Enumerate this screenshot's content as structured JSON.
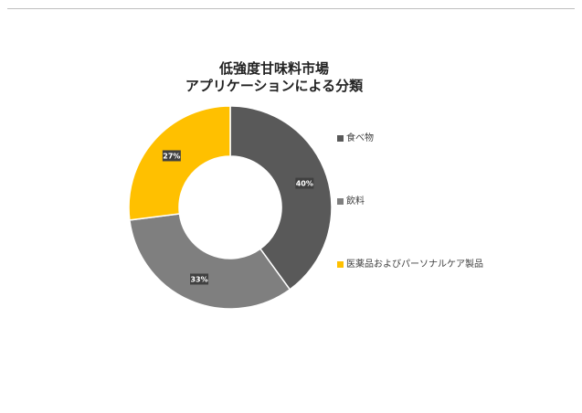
{
  "chart_data": {
    "type": "donut",
    "title": [
      "低強度甘味料市場",
      "アプリケーションによる分類"
    ],
    "categories": [
      "食べ物",
      "飲料",
      "医薬品およびパーソナルケア製品"
    ],
    "values": [
      40,
      33,
      27
    ],
    "data_labels": [
      "40%",
      "33%",
      "27%"
    ],
    "colors": [
      "#595959",
      "#7f7f7f",
      "#ffc000"
    ],
    "legend_position": "right"
  }
}
